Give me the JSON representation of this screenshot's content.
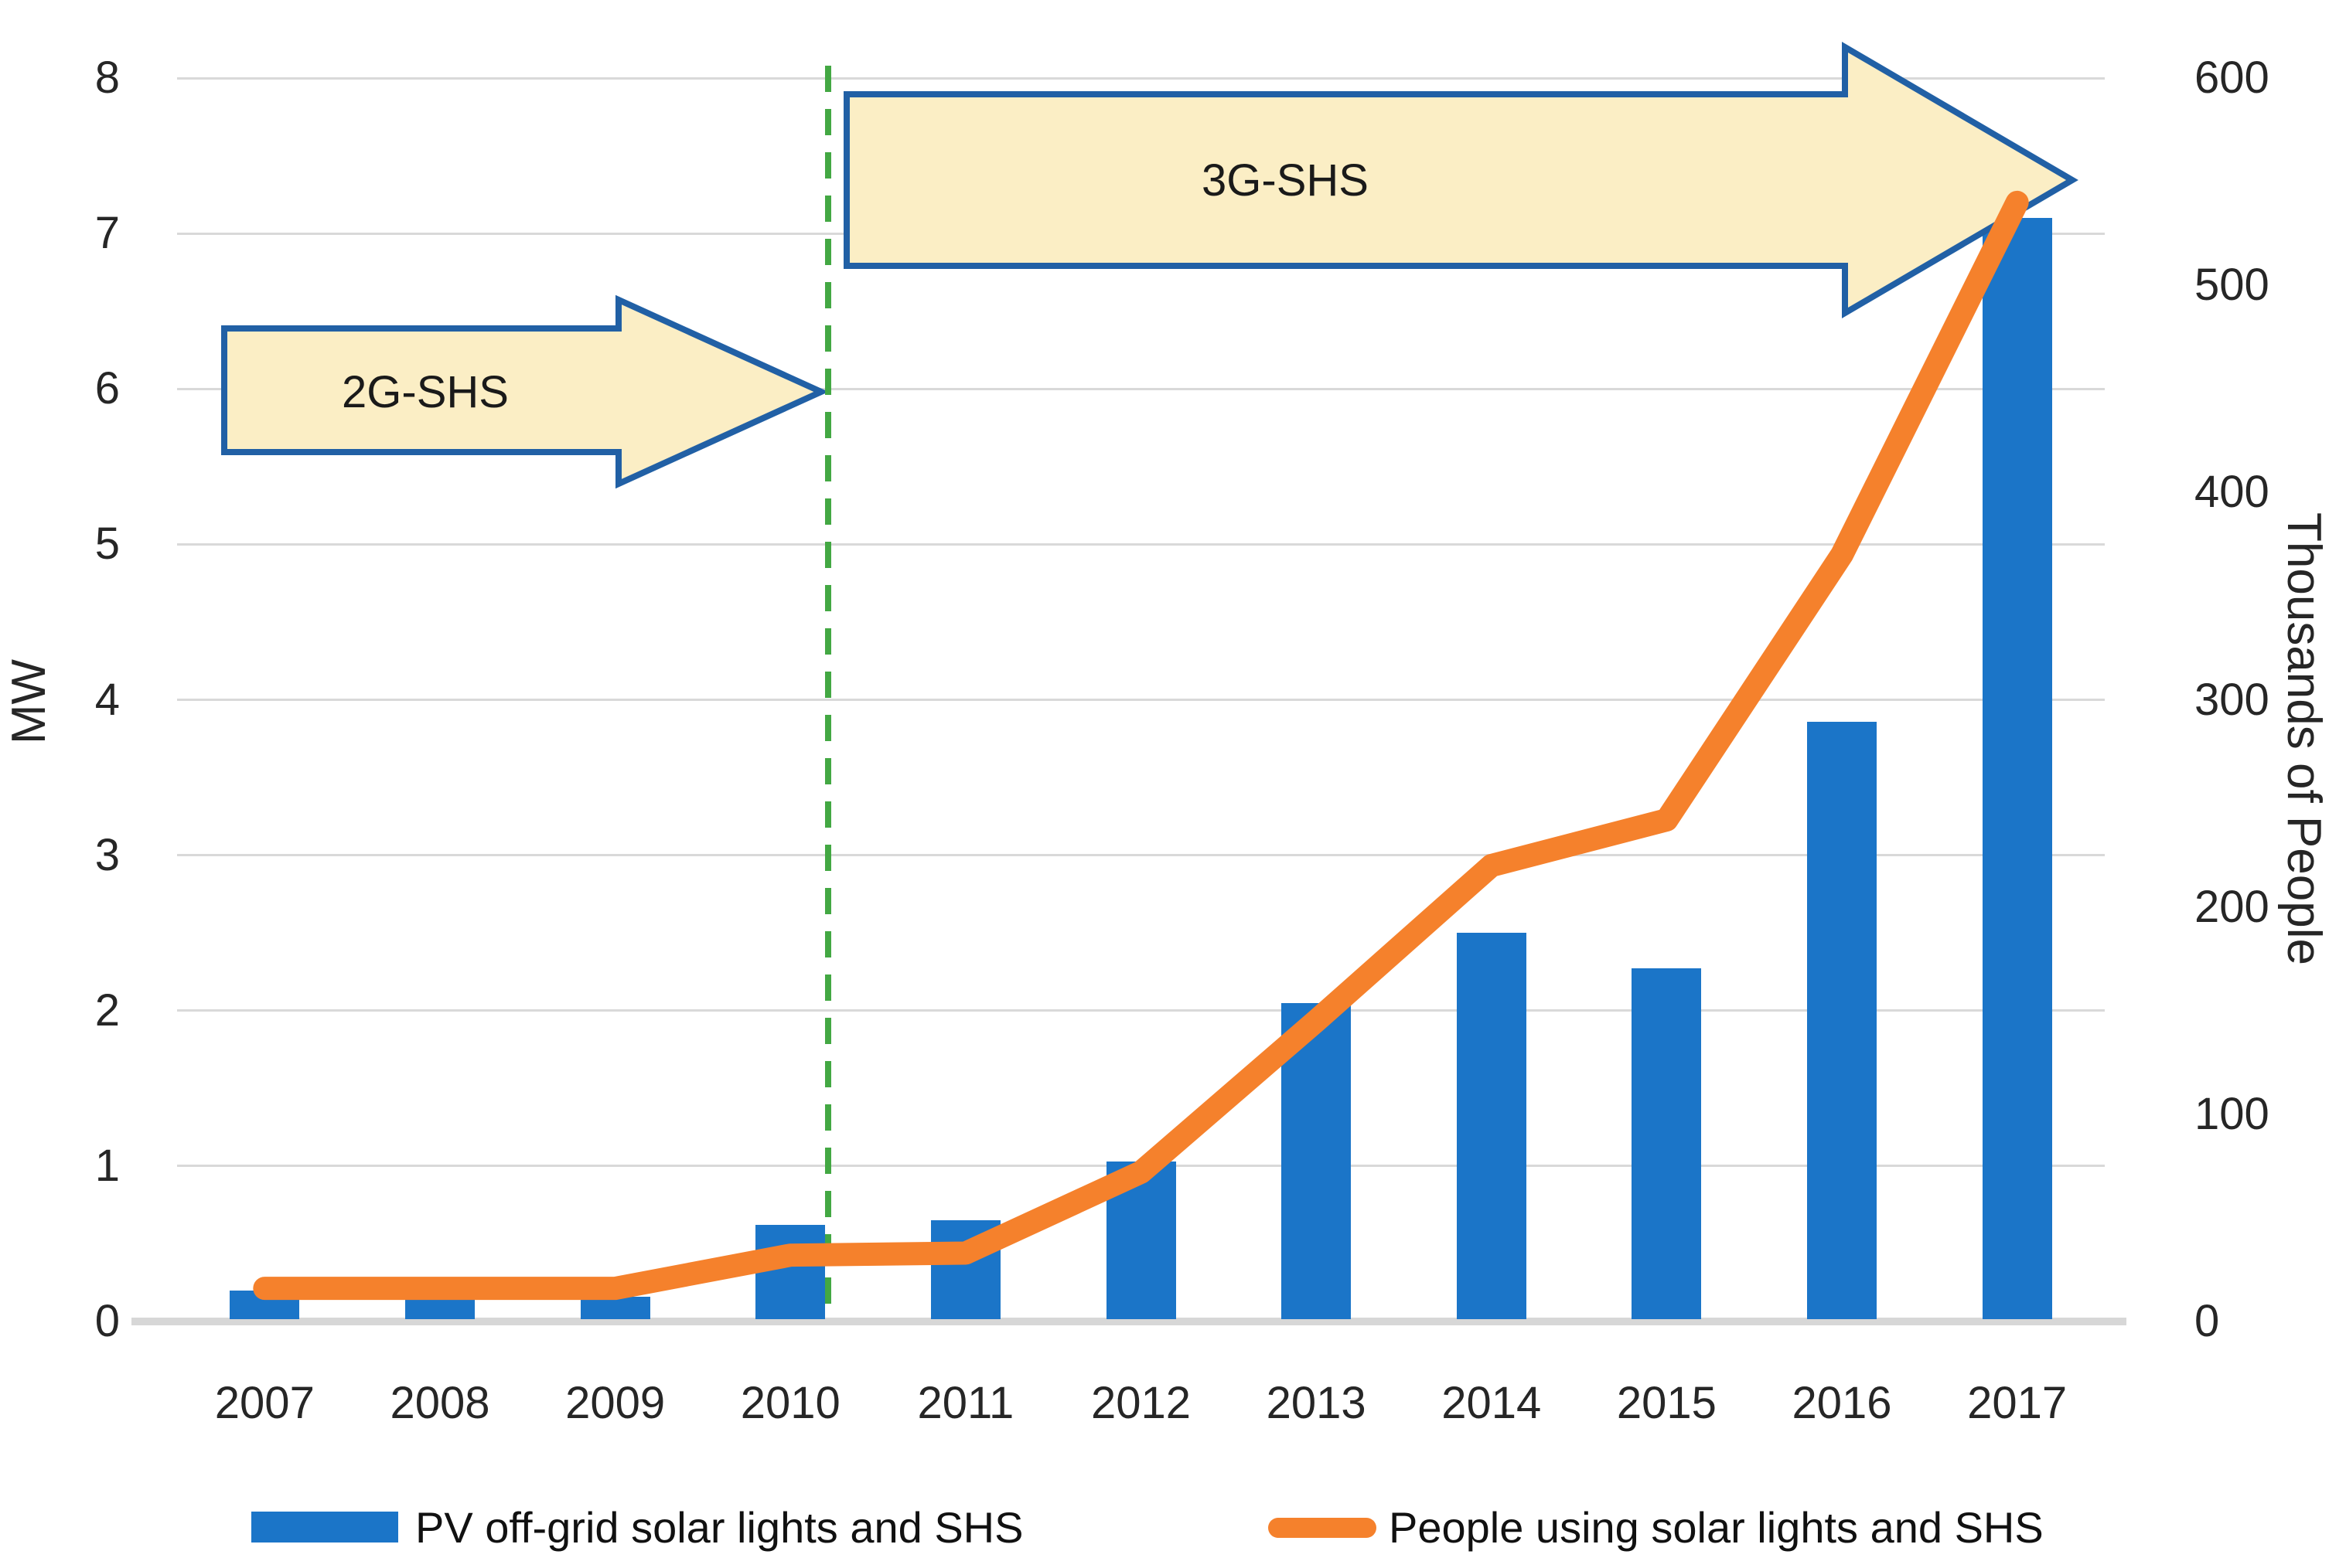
{
  "chart_data": {
    "type": "combo-bar-line",
    "title": "",
    "categories": [
      "2007",
      "2008",
      "2009",
      "2010",
      "2011",
      "2012",
      "2013",
      "2014",
      "2015",
      "2016",
      "2017"
    ],
    "series": [
      {
        "name": "PV off-grid solar lights and SHS",
        "type": "bar",
        "axis": "left",
        "unit": "MW",
        "values": [
          0.2,
          0.15,
          0.16,
          0.62,
          0.65,
          1.03,
          2.05,
          2.5,
          2.27,
          3.86,
          7.1
        ]
      },
      {
        "name": "People using solar lights and SHS",
        "type": "line",
        "axis": "right",
        "unit": "thousands of people",
        "values": [
          16,
          16,
          16,
          32,
          33,
          72,
          145,
          220,
          242,
          370,
          540
        ]
      }
    ],
    "left_axis": {
      "label": "MW",
      "min": 0,
      "max": 8,
      "tick_step": 1,
      "ticks": [
        8,
        7,
        6,
        5,
        4,
        3,
        2,
        1,
        0
      ]
    },
    "right_axis": {
      "label": "Thousands of People",
      "min": 0,
      "max": 600,
      "tick_step": 100,
      "ticks": [
        600,
        500,
        400,
        300,
        200,
        100,
        0
      ]
    },
    "annotations": {
      "arrow_2g": {
        "label": "2G-SHS"
      },
      "arrow_3g": {
        "label": "3G-SHS"
      },
      "phase_divider": {
        "style": "green-dashed-vertical",
        "between": [
          "2010",
          "2011"
        ]
      }
    },
    "legend": [
      {
        "swatch": "bar",
        "label": "PV off-grid solar lights and SHS"
      },
      {
        "swatch": "line",
        "label": "People using solar lights and SHS"
      }
    ],
    "legend_position": "bottom",
    "grid": true,
    "colors": {
      "bar": "#1B75C8",
      "line": "#F5812C",
      "arrow_fill": "#FBEEC5",
      "arrow_border": "#2160A5",
      "divider": "#43A843",
      "gridline": "#D9D9D9",
      "axis_line": "#D7D7D7",
      "text": "#262626"
    }
  }
}
